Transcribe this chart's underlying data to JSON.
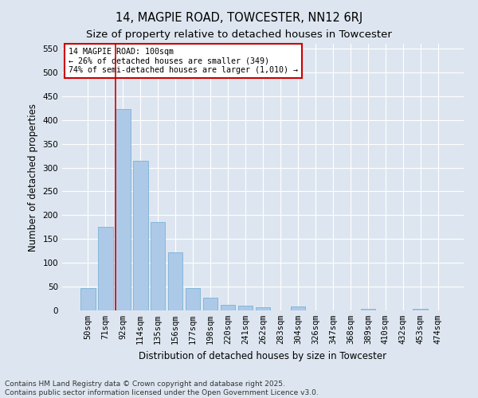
{
  "title1": "14, MAGPIE ROAD, TOWCESTER, NN12 6RJ",
  "title2": "Size of property relative to detached houses in Towcester",
  "xlabel": "Distribution of detached houses by size in Towcester",
  "ylabel": "Number of detached properties",
  "categories": [
    "50sqm",
    "71sqm",
    "92sqm",
    "114sqm",
    "135sqm",
    "156sqm",
    "177sqm",
    "198sqm",
    "220sqm",
    "241sqm",
    "262sqm",
    "283sqm",
    "304sqm",
    "326sqm",
    "347sqm",
    "368sqm",
    "389sqm",
    "410sqm",
    "432sqm",
    "453sqm",
    "474sqm"
  ],
  "values": [
    47,
    176,
    423,
    314,
    186,
    122,
    46,
    27,
    11,
    10,
    6,
    0,
    9,
    0,
    0,
    0,
    4,
    0,
    0,
    4,
    0
  ],
  "bar_color": "#adc9e8",
  "bar_edge_color": "#6aaad4",
  "bg_color": "#dde6f0",
  "grid_color": "#ffffff",
  "vline_index": 2,
  "vline_color": "#cc0000",
  "annotation_text": "14 MAGPIE ROAD: 100sqm\n← 26% of detached houses are smaller (349)\n74% of semi-detached houses are larger (1,010) →",
  "annotation_box_color": "#cc0000",
  "ylim": [
    0,
    560
  ],
  "yticks": [
    0,
    50,
    100,
    150,
    200,
    250,
    300,
    350,
    400,
    450,
    500,
    550
  ],
  "footer_line1": "Contains HM Land Registry data © Crown copyright and database right 2025.",
  "footer_line2": "Contains public sector information licensed under the Open Government Licence v3.0.",
  "title_fontsize": 10.5,
  "subtitle_fontsize": 9.5,
  "axis_label_fontsize": 8.5,
  "tick_fontsize": 7.5,
  "footer_fontsize": 6.5
}
